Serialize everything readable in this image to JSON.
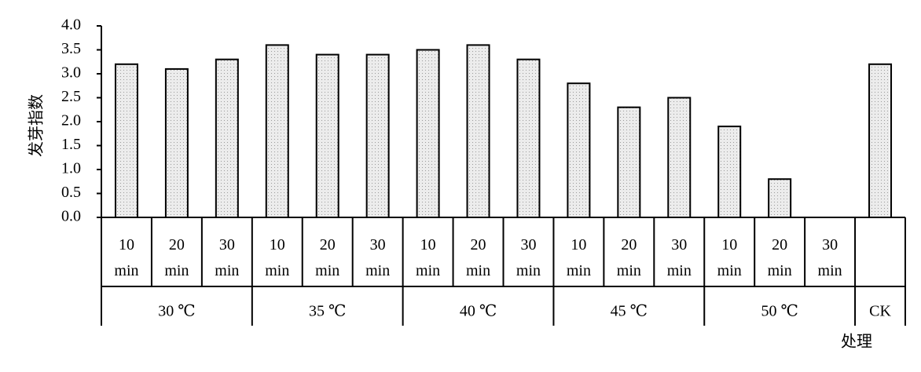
{
  "chart_data": {
    "type": "bar",
    "y_label": "发芽指数",
    "x_label": "处理",
    "ylim": [
      0,
      4
    ],
    "yticks": [
      {
        "value": 0,
        "label": "0.0"
      },
      0.5,
      {
        "value": 1,
        "label": "1.0"
      },
      1.5,
      {
        "value": 2,
        "label": "2.0"
      },
      2.5,
      {
        "value": 3,
        "label": "3.0"
      },
      3.5,
      {
        "value": 4,
        "label": "4.0"
      }
    ],
    "bar_fill": "#ececec",
    "bar_stroke": "#000000",
    "groups": [
      {
        "name": "30 ℃",
        "categories": [
          "10 min",
          "20 min",
          "30 min"
        ],
        "values": [
          3.2,
          3.1,
          3.3
        ]
      },
      {
        "name": "35 ℃",
        "categories": [
          "10 min",
          "20 min",
          "30 min"
        ],
        "values": [
          3.6,
          3.4,
          3.4
        ]
      },
      {
        "name": "40 ℃",
        "categories": [
          "10 min",
          "20 min",
          "30 min"
        ],
        "values": [
          3.5,
          3.6,
          3.3
        ]
      },
      {
        "name": "45 ℃",
        "categories": [
          "10 min",
          "20 min",
          "30 min"
        ],
        "values": [
          2.8,
          2.3,
          2.5
        ]
      },
      {
        "name": "50 ℃",
        "categories": [
          "10 min",
          "20 min",
          "30 min"
        ],
        "values": [
          1.9,
          0.8,
          0
        ]
      },
      {
        "name": "CK",
        "categories": [
          null
        ],
        "values": [
          3.2
        ]
      }
    ]
  }
}
